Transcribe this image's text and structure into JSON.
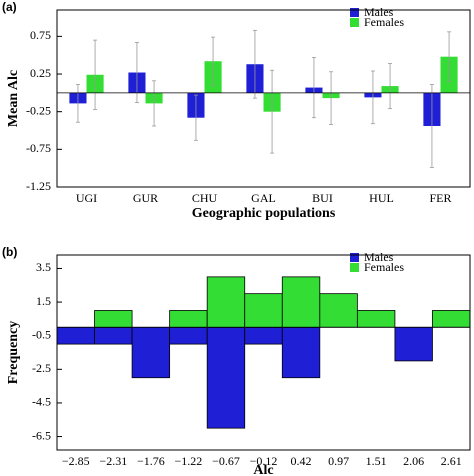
{
  "chart_data": [
    {
      "type": "bar",
      "panel_label": "(a)",
      "ylabel": "Mean Alc",
      "xlabel": "Geographic populations",
      "categories": [
        "UGI",
        "GUR",
        "CHU",
        "GAL",
        "BUI",
        "HUL",
        "FER"
      ],
      "series": [
        {
          "name": "Males",
          "color": "#1f1fd6",
          "values": [
            -0.14,
            0.27,
            -0.33,
            0.38,
            0.07,
            -0.06,
            -0.44
          ],
          "errors": [
            0.25,
            0.4,
            0.3,
            0.45,
            0.4,
            0.35,
            0.55
          ]
        },
        {
          "name": "Females",
          "color": "#33dd33",
          "values": [
            0.24,
            -0.14,
            0.42,
            -0.25,
            -0.07,
            0.09,
            0.48
          ],
          "errors": [
            0.46,
            0.3,
            0.32,
            0.55,
            0.35,
            0.3,
            0.33
          ]
        }
      ],
      "ylim": [
        -1.25,
        1.1
      ],
      "yticks": [
        0.75,
        0.25,
        -0.25,
        -0.75,
        -1.25
      ],
      "legend": "upper right",
      "error_color": "#999999"
    },
    {
      "type": "histogram",
      "panel_label": "(b)",
      "ylabel": "Frequency",
      "xlabel": "Alc",
      "categories": [
        "−2.85",
        "−2.31",
        "−1.76",
        "−1.22",
        "−0.67",
        "−0.12",
        "0.42",
        "0.97",
        "1.51",
        "2.06",
        "2.61"
      ],
      "series": [
        {
          "name": "Males",
          "color": "#1f1fd6",
          "values": [
            -1,
            -1,
            -3,
            -1,
            -6,
            -1,
            -3,
            0,
            0,
            -2,
            0
          ]
        },
        {
          "name": "Females",
          "color": "#33dd33",
          "values": [
            0,
            1,
            0,
            1,
            3,
            2,
            3,
            2,
            1,
            0,
            1
          ]
        }
      ],
      "ylim": [
        -7.3,
        4.3
      ],
      "yticks": [
        3.5,
        1.5,
        -0.5,
        -2.5,
        -4.5,
        -6.5
      ],
      "legend": "upper right"
    }
  ]
}
